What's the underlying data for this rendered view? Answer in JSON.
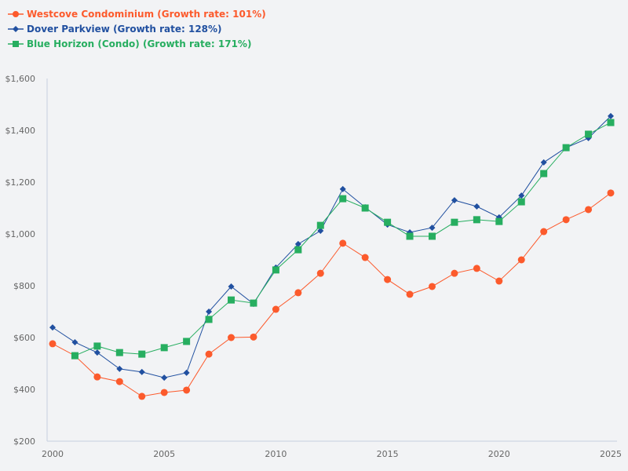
{
  "chart_data": {
    "type": "line",
    "title": "",
    "xlabel": "",
    "ylabel": "",
    "x": [
      2000,
      2001,
      2002,
      2003,
      2004,
      2005,
      2006,
      2007,
      2008,
      2009,
      2010,
      2011,
      2012,
      2013,
      2014,
      2015,
      2016,
      2017,
      2018,
      2019,
      2020,
      2021,
      2022,
      2023,
      2024,
      2025
    ],
    "xlim": [
      2000,
      2025
    ],
    "ylim": [
      200,
      1600
    ],
    "x_ticks": [
      "2000",
      "2005",
      "2010",
      "2015",
      "2020",
      "2025"
    ],
    "y_ticks": [
      "$200",
      "$400",
      "$600",
      "$800",
      "$1,000",
      "$1,200",
      "$1,400",
      "$1,600"
    ],
    "grid": false,
    "legend_position": "top-left",
    "series": [
      {
        "name": "Westcove Condominium (Growth rate: 101%)",
        "color": "#fc5a2c",
        "marker": "circle",
        "values": [
          576,
          530,
          448,
          430,
          373,
          388,
          397,
          536,
          600,
          602,
          709,
          773,
          848,
          964,
          909,
          824,
          767,
          797,
          848,
          867,
          818,
          900,
          1009,
          1055,
          1094,
          1158
        ]
      },
      {
        "name": "Dover Parkview (Growth rate: 128%)",
        "color": "#2150a0",
        "marker": "diamond",
        "values": [
          639,
          582,
          542,
          479,
          467,
          445,
          464,
          700,
          797,
          730,
          870,
          961,
          1012,
          1173,
          1103,
          1036,
          1006,
          1024,
          1130,
          1106,
          1064,
          1148,
          1276,
          1333,
          1370,
          1455
        ]
      },
      {
        "name": "Blue Horizon (Condo) (Growth rate: 171%)",
        "color": "#27ae60",
        "marker": "square",
        "values": [
          null,
          530,
          567,
          542,
          536,
          561,
          585,
          670,
          745,
          733,
          861,
          939,
          1033,
          1136,
          1100,
          1045,
          991,
          991,
          1045,
          1055,
          1048,
          1124,
          1233,
          1333,
          1385,
          1430
        ]
      }
    ]
  }
}
